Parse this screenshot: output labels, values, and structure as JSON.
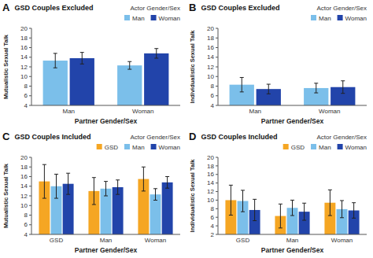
{
  "chart_data": [
    {
      "type": "bar",
      "title": "GSD Couples Excluded",
      "annotations": [
        "A"
      ],
      "xlabel": "Partner Gender/Sex",
      "ylabel": "Mutualistic Sexual Talk",
      "categories": [
        "Man",
        "Woman"
      ],
      "legend_title": "Actor Gender/Sex",
      "series": [
        {
          "name": "Man",
          "color": "#7BBFEA",
          "values": [
            13.3,
            12.3
          ],
          "errors": [
            1.5,
            0.8
          ]
        },
        {
          "name": "Woman",
          "color": "#2244AA",
          "values": [
            13.8,
            14.8
          ],
          "errors": [
            1.2,
            1.0
          ]
        }
      ],
      "ylim": [
        4,
        20
      ],
      "yticks": [
        4,
        6,
        8,
        10,
        12,
        14,
        16,
        18,
        20
      ],
      "grid": false,
      "legend": "upper right"
    },
    {
      "type": "bar",
      "title": "GSD Couples Excluded",
      "annotations": [
        "B"
      ],
      "xlabel": "Partner Gender/Sex",
      "ylabel": "Individualistic Sexual Talk",
      "categories": [
        "Man",
        "Woman"
      ],
      "legend_title": "Actor Gender/Sex",
      "series": [
        {
          "name": "Man",
          "color": "#7BBFEA",
          "values": [
            8.3,
            7.6
          ],
          "errors": [
            1.5,
            1.0
          ]
        },
        {
          "name": "Woman",
          "color": "#2244AA",
          "values": [
            7.4,
            7.8
          ],
          "errors": [
            1.0,
            1.3
          ]
        }
      ],
      "ylim": [
        4,
        20
      ],
      "yticks": [
        4,
        6,
        8,
        10,
        12,
        14,
        16,
        18,
        20
      ],
      "grid": false,
      "legend": "upper right"
    },
    {
      "type": "bar",
      "title": "GSD Couples Included",
      "annotations": [
        "C"
      ],
      "xlabel": "Partner Gender/Sex",
      "ylabel": "Mutualistic Sexual Talk",
      "categories": [
        "GSD",
        "Man",
        "Woman"
      ],
      "legend_title": "Actor Gender/Sex",
      "series": [
        {
          "name": "GSD",
          "color": "#F5A623",
          "values": [
            15.0,
            13.0,
            15.5
          ],
          "errors": [
            3.5,
            2.8,
            2.5
          ]
        },
        {
          "name": "Man",
          "color": "#7BBFEA",
          "values": [
            14.0,
            13.5,
            12.3
          ],
          "errors": [
            2.5,
            1.5,
            1.2
          ]
        },
        {
          "name": "Woman",
          "color": "#2244AA",
          "values": [
            14.5,
            13.8,
            14.8
          ],
          "errors": [
            2.2,
            1.5,
            1.2
          ]
        }
      ],
      "ylim": [
        4,
        20
      ],
      "yticks": [
        4,
        6,
        8,
        10,
        12,
        14,
        16,
        18,
        20
      ],
      "grid": false,
      "legend": "upper right"
    },
    {
      "type": "bar",
      "title": "GSD Couples Included",
      "annotations": [
        "D"
      ],
      "xlabel": "Partner Gender/Sex",
      "ylabel": "Individualistic Sexual Talk",
      "categories": [
        "GSD",
        "Man",
        "Woman"
      ],
      "legend_title": "Actor Gender/Sex",
      "series": [
        {
          "name": "GSD",
          "color": "#F5A623",
          "values": [
            10.0,
            6.3,
            9.4
          ],
          "errors": [
            3.5,
            2.8,
            3.0
          ]
        },
        {
          "name": "Man",
          "color": "#7BBFEA",
          "values": [
            9.8,
            8.2,
            7.9
          ],
          "errors": [
            2.5,
            1.8,
            2.0
          ]
        },
        {
          "name": "Woman",
          "color": "#2244AA",
          "values": [
            7.7,
            7.3,
            7.6
          ],
          "errors": [
            2.5,
            2.0,
            1.8
          ]
        }
      ],
      "ylim": [
        2,
        20
      ],
      "yticks": [
        2,
        4,
        6,
        8,
        10,
        12,
        14,
        16,
        18,
        20
      ],
      "grid": false,
      "legend": "upper right"
    }
  ]
}
